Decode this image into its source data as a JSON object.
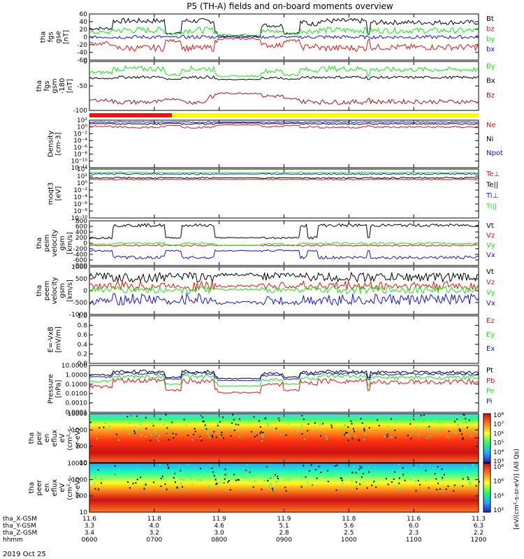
{
  "title": "P5 (TH-A) fields and on-board moments overview",
  "colors": {
    "black": "#000000",
    "red": "#ee1111",
    "green": "#11ee11",
    "blue": "#1111ee",
    "darkred": "#aa1111",
    "yellow": "#ffff00"
  },
  "time_axis": {
    "range": [
      "0600",
      "1200"
    ],
    "ticks": [
      "0600",
      "0700",
      "0800",
      "0900",
      "1000",
      "1100",
      "1200"
    ],
    "rows": [
      {
        "label": "tha_X-GSM",
        "values": [
          "11.6",
          "11.8",
          "11.9",
          "11.9",
          "11.8",
          "11.6",
          "11.3"
        ]
      },
      {
        "label": "tha_Y-GSM",
        "values": [
          "3.3",
          "4.0",
          "4.6",
          "5.1",
          "5.6",
          "6.0",
          "6.3"
        ]
      },
      {
        "label": "tha_Z-GSM",
        "values": [
          "3.4",
          "3.2",
          "3.0",
          "2.8",
          "2.5",
          "2.3",
          "2.2"
        ]
      },
      {
        "label": "hhmm",
        "values": [
          "0600",
          "0700",
          "0800",
          "0900",
          "1000",
          "1100",
          "1200"
        ]
      }
    ],
    "date": "2019 Oct 25"
  },
  "panels": [
    {
      "id": "fgs_gse",
      "ylabel": [
        "tha",
        "fgs",
        "gse",
        "[nT]"
      ],
      "scale": "linear",
      "ticks": [
        "60",
        "40",
        "20",
        "0",
        "-20",
        "-40",
        "-60"
      ],
      "legend": [
        {
          "text": "Bt",
          "color": "black"
        },
        {
          "text": "bz",
          "color": "red"
        },
        {
          "text": "by",
          "color": "green"
        },
        {
          "text": "bx",
          "color": "blue"
        }
      ]
    },
    {
      "id": "fgs_gsm",
      "ylabel": [
        "tha",
        "fgs",
        "gsm",
        "-180",
        "[nT]"
      ],
      "scale": "linear",
      "ticks": [
        "0",
        "-50",
        "-100"
      ],
      "legend": [
        {
          "text": "By",
          "color": "green"
        },
        {
          "text": "Bx",
          "color": "black"
        },
        {
          "text": "Bz",
          "color": "darkred"
        }
      ]
    },
    {
      "id": "density",
      "ylabel": [
        "Density",
        "[cm-3]"
      ],
      "scale": "log",
      "ticks": [
        "10²",
        "10⁰",
        "10⁻²",
        "10⁻⁴",
        "10⁻⁶",
        "10⁻⁸",
        "10⁻¹⁰",
        "10⁻¹²"
      ],
      "legend": [
        {
          "text": "Ne",
          "color": "red"
        },
        {
          "text": "Ni",
          "color": "black"
        },
        {
          "text": "Npot",
          "color": "blue"
        }
      ]
    },
    {
      "id": "temperature",
      "ylabel": [
        "moqt3",
        "[eV]"
      ],
      "scale": "log",
      "ticks": [
        "10⁴",
        "10²",
        "10⁰",
        "10⁻²",
        "10⁻⁴",
        "10⁻⁶",
        "10⁻⁸",
        "10⁻¹⁰"
      ],
      "legend": [
        {
          "text": "Te⊥",
          "color": "red"
        },
        {
          "text": "Te||",
          "color": "black"
        },
        {
          "text": "Ti⊥",
          "color": "blue"
        },
        {
          "text": "Ti||",
          "color": "green"
        }
      ]
    },
    {
      "id": "peim_velocity",
      "ylabel": [
        "tha",
        "peim",
        "velocity",
        "gsm",
        "[km/s]"
      ],
      "scale": "linear",
      "ticks": [
        "800",
        "600",
        "400",
        "200",
        "0",
        "-200",
        "-400",
        "-600",
        "-800"
      ],
      "legend": [
        {
          "text": "Vt",
          "color": "black"
        },
        {
          "text": "Vz",
          "color": "red"
        },
        {
          "text": "Vy",
          "color": "green"
        },
        {
          "text": "Vx",
          "color": "blue"
        }
      ]
    },
    {
      "id": "peem_velocity",
      "ylabel": [
        "tha",
        "peem",
        "velocity",
        "gsm",
        "[km/s]"
      ],
      "scale": "linear",
      "ticks": [
        "1000",
        "500",
        "0",
        "-500",
        "-1000"
      ],
      "legend": [
        {
          "text": "Vt",
          "color": "black"
        },
        {
          "text": "Vz",
          "color": "red"
        },
        {
          "text": "Vy",
          "color": "green"
        },
        {
          "text": "Vx",
          "color": "blue"
        }
      ]
    },
    {
      "id": "efield",
      "ylabel": [
        "E=-VxB",
        "[mV/m]"
      ],
      "scale": "linear",
      "ticks": [
        "1.0",
        "0.8",
        "0.6",
        "0.4",
        "0.2",
        "0.0"
      ],
      "legend": [
        {
          "text": "Ez",
          "color": "red"
        },
        {
          "text": "Ey",
          "color": "green"
        },
        {
          "text": "Ex",
          "color": "blue"
        }
      ]
    },
    {
      "id": "pressure",
      "ylabel": [
        "Pressure",
        "[nPa]"
      ],
      "scale": "log",
      "ticks": [
        "10.0000",
        "1.0000",
        "0.1000",
        "0.0100",
        "0.0010",
        "0.0001"
      ],
      "legend": [
        {
          "text": "Pt",
          "color": "black"
        },
        {
          "text": "Pb",
          "color": "red"
        },
        {
          "text": "Pe",
          "color": "green"
        },
        {
          "text": "Pi",
          "color": "blue"
        }
      ]
    },
    {
      "id": "peir_spec",
      "ylabel": [
        "tha",
        "peir",
        "en",
        "eflux",
        "eV",
        "(cm²-s-",
        "sr-eV)"
      ],
      "scale": "log",
      "ticks": [
        "10000",
        "1000",
        "100",
        "10"
      ]
    },
    {
      "id": "peer_spec",
      "ylabel": [
        "tha",
        "peer",
        "en",
        "eflux",
        "eV",
        "(cm²-s-",
        "sr-eV)"
      ],
      "scale": "log",
      "ticks": [
        "10000",
        "1000",
        "100",
        "10"
      ]
    }
  ],
  "colorbar": {
    "ticks_top": [
      "10⁸",
      "10⁷",
      "10⁶",
      "10⁵",
      "10⁴",
      "10³"
    ],
    "ticks_bottom": [
      "10⁸",
      "10⁶",
      "10⁴",
      "10²"
    ],
    "label": "[eV/(cm²-s-sr-eV)] (All Qs)"
  },
  "chart_data": {
    "type": "line",
    "x": [
      "0600",
      "0630",
      "0700",
      "0730",
      "0800",
      "0830",
      "0900",
      "0930",
      "1000",
      "1030",
      "1100",
      "1130",
      "1200"
    ],
    "series": [
      {
        "name": "Bt",
        "values": [
          20,
          30,
          30,
          10,
          10,
          10,
          30,
          25,
          30,
          5,
          5,
          5,
          20
        ]
      },
      {
        "name": "bz",
        "values": [
          -10,
          -25,
          -20,
          0,
          0,
          -5,
          -20,
          -10,
          -20,
          0,
          0,
          0,
          -15
        ]
      },
      {
        "name": "by",
        "values": [
          5,
          10,
          15,
          0,
          0,
          0,
          10,
          5,
          10,
          0,
          0,
          0,
          5
        ]
      },
      {
        "name": "bx",
        "values": [
          0,
          2,
          0,
          0,
          0,
          0,
          0,
          2,
          0,
          0,
          0,
          0,
          0
        ]
      },
      {
        "name": "Vt",
        "values": [
          150,
          200,
          200,
          500,
          500,
          200,
          300,
          250,
          500,
          500,
          500,
          500,
          100
        ]
      }
    ]
  }
}
